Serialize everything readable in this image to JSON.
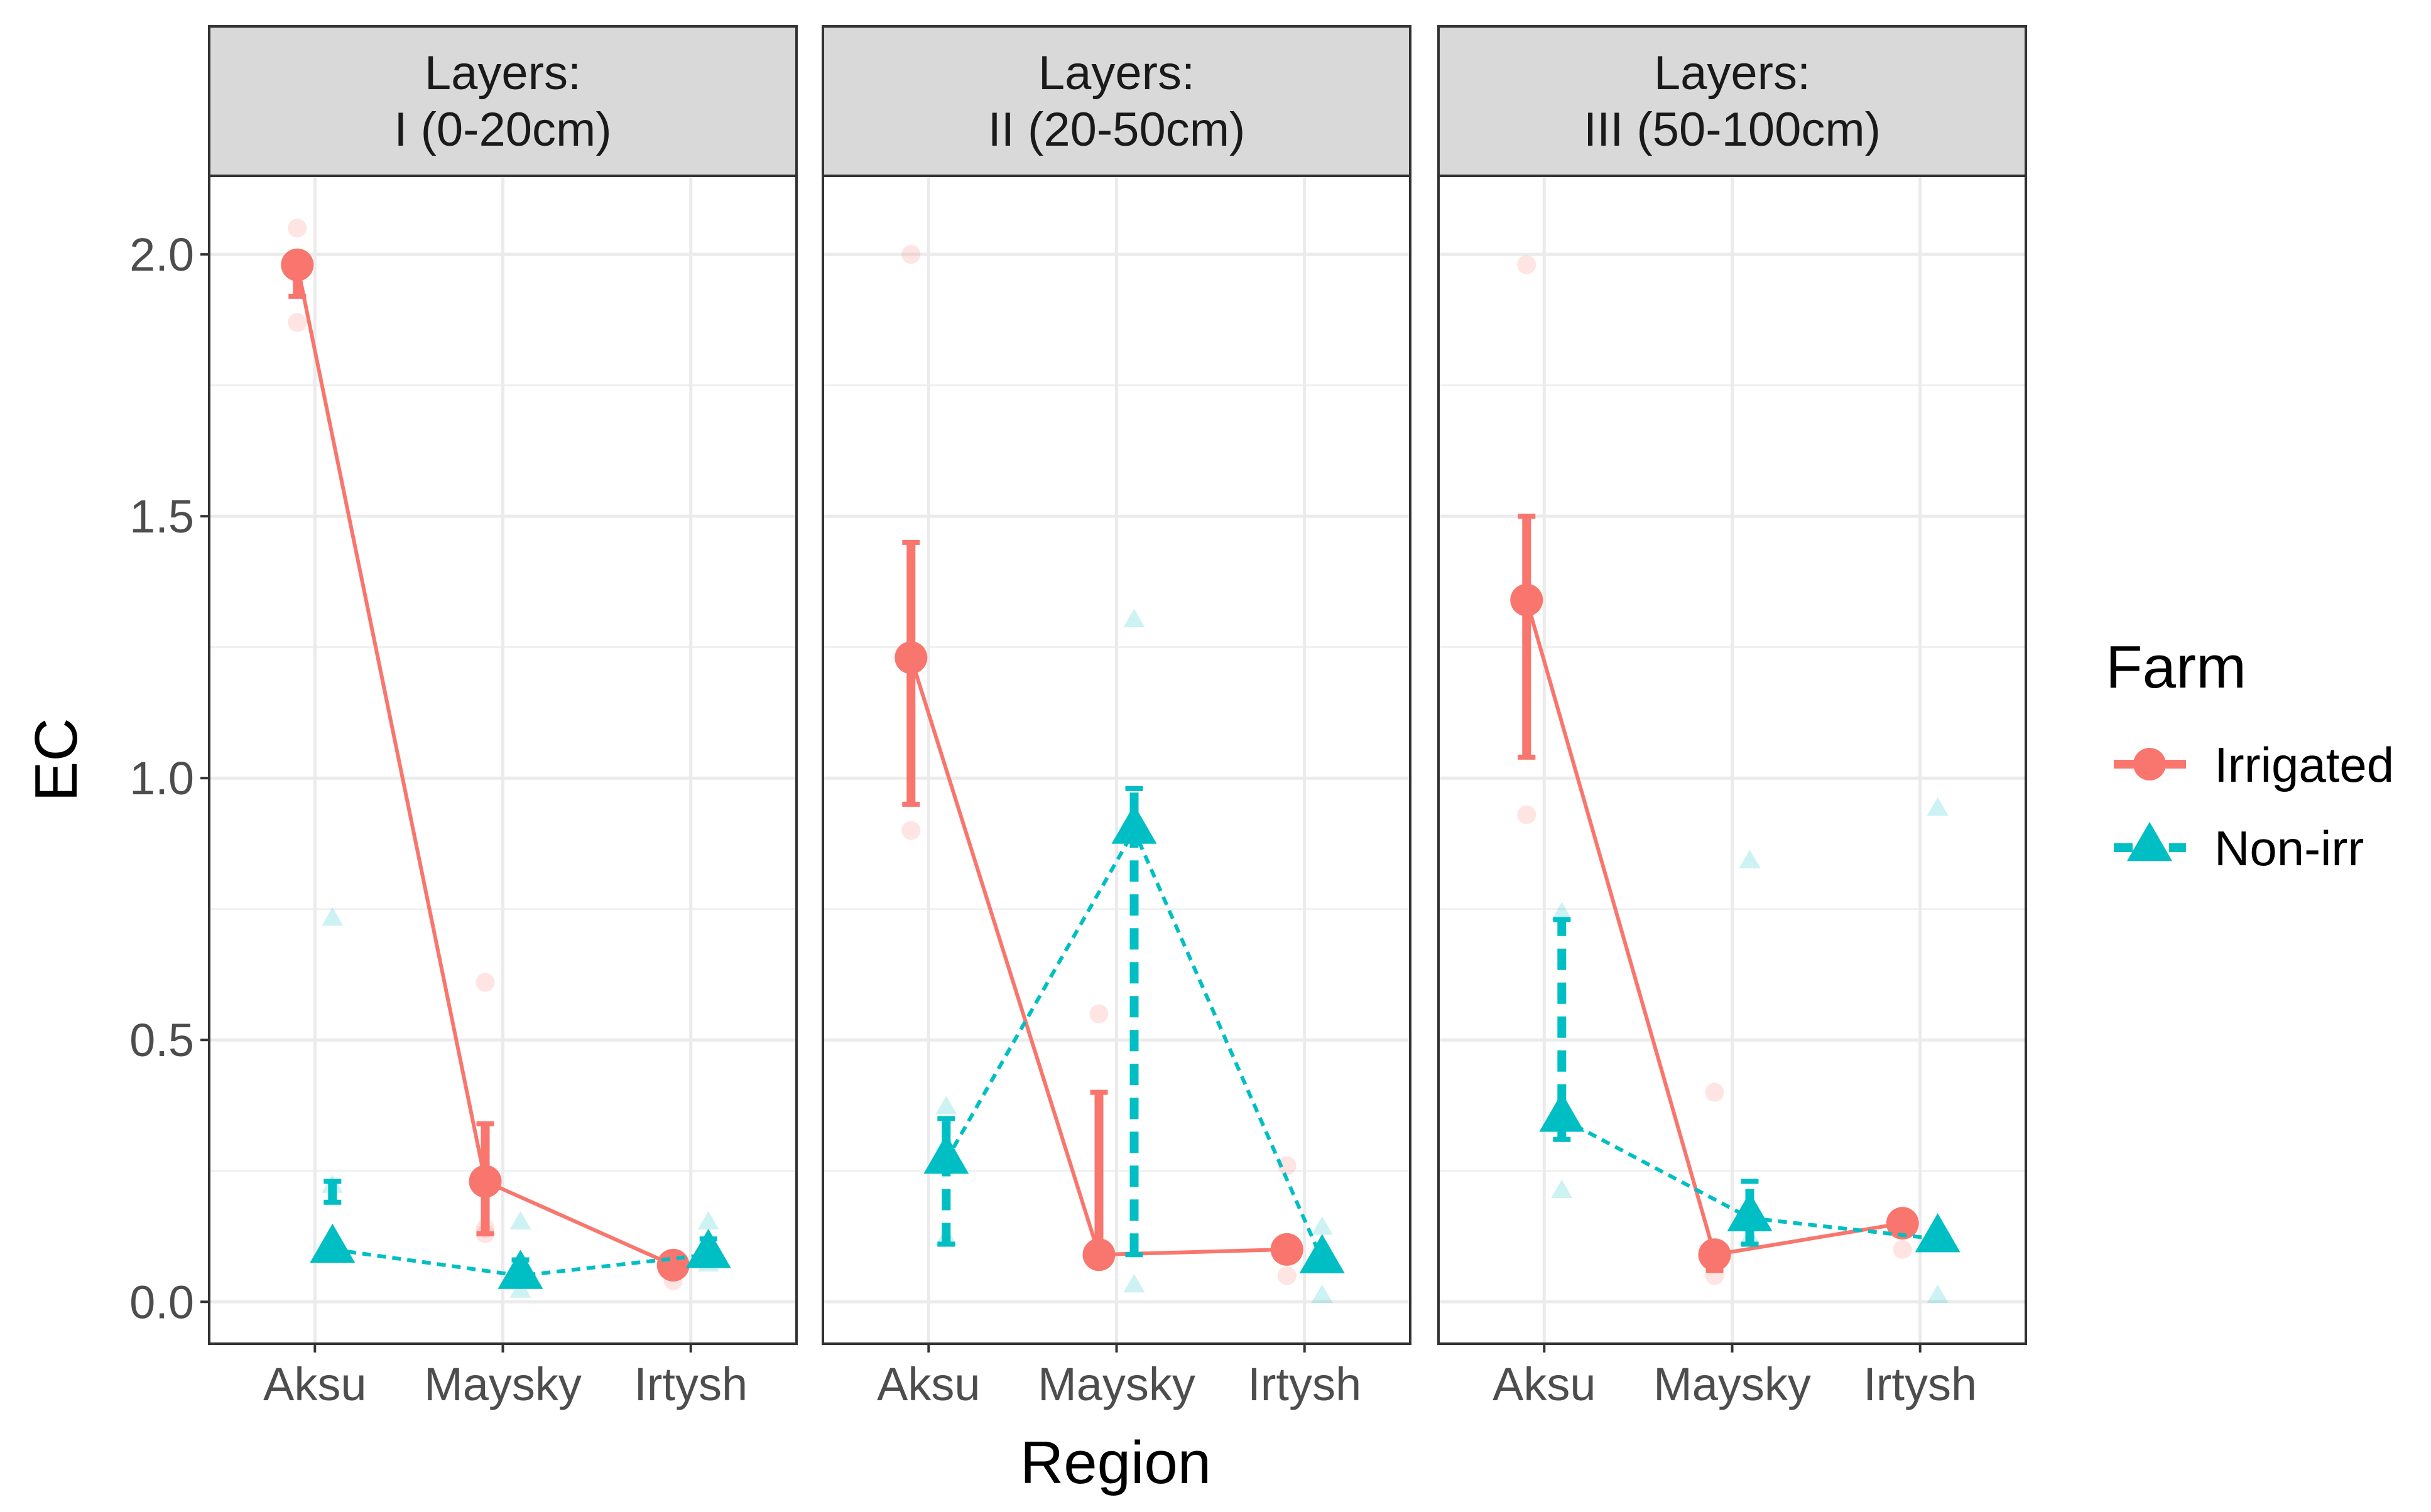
{
  "chart_data": {
    "type": "line",
    "xlabel": "Region",
    "ylabel": "EC",
    "ylim": [
      -0.08,
      2.15
    ],
    "y_ticks": [
      0.0,
      0.5,
      1.0,
      1.5,
      2.0
    ],
    "y_tick_labels": [
      "0.0",
      "0.5",
      "1.0",
      "1.5",
      "2.0"
    ],
    "grid": true,
    "categories": [
      "Aksu",
      "Maysky",
      "Irtysh"
    ],
    "legend": {
      "title": "Farm",
      "position": "right",
      "entries": [
        "Irrigated",
        "Non-irr"
      ]
    },
    "colors": {
      "Irrigated": "#F8766D",
      "Non-irr": "#00BFC4"
    },
    "panels": [
      {
        "strip_line1": "Layers:",
        "strip_line2": "I (0-20cm)",
        "series": [
          {
            "name": "Irrigated",
            "means": [
              1.98,
              0.23,
              0.07
            ],
            "err_low": [
              1.92,
              0.13,
              0.06
            ],
            "err_high": [
              1.98,
              0.34,
              0.08
            ],
            "raw": [
              [
                2.05,
                1.87,
                1.98
              ],
              [
                0.61,
                0.13,
                0.14
              ],
              [
                0.04,
                0.07,
                0.08
              ]
            ]
          },
          {
            "name": "Non-irr",
            "means": [
              0.1,
              0.05,
              0.09
            ],
            "err_low": [
              0.19,
              0.04,
              0.07
            ],
            "err_high": [
              0.23,
              0.08,
              0.12
            ],
            "raw": [
              [
                0.73,
                0.22,
                0.09
              ],
              [
                0.15,
                0.02,
                0.06
              ],
              [
                0.15,
                0.1,
                0.07
              ]
            ]
          }
        ]
      },
      {
        "strip_line1": "Layers:",
        "strip_line2": "II (20-50cm)",
        "series": [
          {
            "name": "Irrigated",
            "means": [
              1.23,
              0.09,
              0.1
            ],
            "err_low": [
              0.95,
              0.09,
              0.1
            ],
            "err_high": [
              1.45,
              0.4,
              0.1
            ],
            "raw": [
              [
                2.0,
                0.9,
                1.23
              ],
              [
                0.55,
                0.1,
                0.09
              ],
              [
                0.26,
                0.05,
                0.1
              ]
            ]
          },
          {
            "name": "Non-irr",
            "means": [
              0.27,
              0.9,
              0.08
            ],
            "err_low": [
              0.11,
              0.09,
              0.08
            ],
            "err_high": [
              0.35,
              0.98,
              0.08
            ],
            "raw": [
              [
                0.37,
                0.12,
                0.3
              ],
              [
                1.3,
                0.03,
                0.9
              ],
              [
                0.14,
                0.01,
                0.08
              ]
            ]
          }
        ]
      },
      {
        "strip_line1": "Layers:",
        "strip_line2": "III (50-100cm)",
        "series": [
          {
            "name": "Irrigated",
            "means": [
              1.34,
              0.09,
              0.15
            ],
            "err_low": [
              1.04,
              0.06,
              0.15
            ],
            "err_high": [
              1.5,
              0.1,
              0.15
            ],
            "raw": [
              [
                1.98,
                0.93,
                1.34
              ],
              [
                0.4,
                0.05,
                0.09
              ],
              [
                0.1,
                0.15,
                0.15
              ]
            ]
          },
          {
            "name": "Non-irr",
            "means": [
              0.35,
              0.16,
              0.12
            ],
            "err_low": [
              0.31,
              0.11,
              0.11
            ],
            "err_high": [
              0.73,
              0.23,
              0.13
            ],
            "raw": [
              [
                0.21,
                0.74,
                0.35
              ],
              [
                0.84,
                0.16,
                0.12
              ],
              [
                0.94,
                0.01,
                0.12
              ]
            ]
          }
        ]
      }
    ]
  }
}
